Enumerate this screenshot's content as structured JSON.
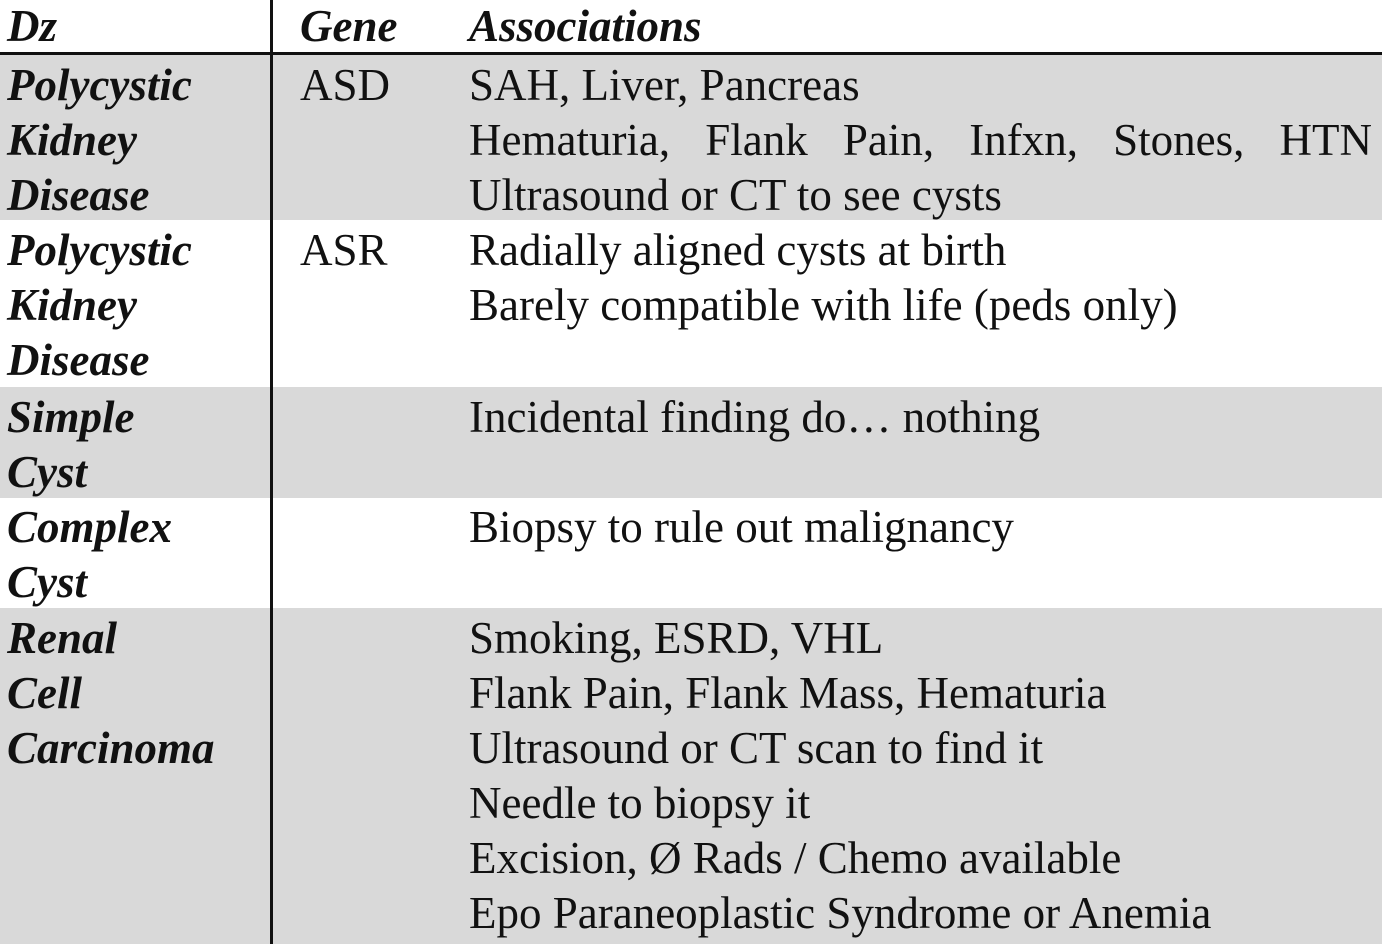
{
  "header": {
    "dz": "Dz",
    "gene": "Gene",
    "associations": "Associations"
  },
  "rows": [
    {
      "dz_lines": [
        "Polycystic",
        "Kidney",
        "Disease"
      ],
      "gene": "ASD",
      "associations": [
        "SAH, Liver, Pancreas",
        "Hematuria, Flank Pain, Infxn, Stones, HTN",
        "Ultrasound or CT to see cysts"
      ],
      "shaded": true
    },
    {
      "dz_lines": [
        "Polycystic",
        "Kidney",
        "Disease"
      ],
      "gene": "ASR",
      "associations": [
        "Radially aligned cysts at birth",
        "Barely compatible with life (peds only)"
      ],
      "shaded": false
    },
    {
      "dz_lines": [
        "Simple",
        "Cyst"
      ],
      "gene": "",
      "associations": [
        "Incidental finding do… nothing"
      ],
      "shaded": true
    },
    {
      "dz_lines": [
        "Complex",
        "Cyst"
      ],
      "gene": "",
      "associations": [
        "Biopsy to rule out malignancy"
      ],
      "shaded": false
    },
    {
      "dz_lines": [
        "Renal",
        "Cell",
        "Carcinoma"
      ],
      "gene": "",
      "associations": [
        "Smoking, ESRD, VHL",
        "Flank Pain, Flank Mass, Hematuria",
        "Ultrasound or CT scan to find it",
        "Needle to biopsy it",
        "Excision, Ø Rads / Chemo available",
        "Epo Paraneoplastic Syndrome or Anemia"
      ],
      "shaded": true
    }
  ],
  "colors": {
    "shaded_row": "#d9d9d9",
    "plain_row": "#ffffff",
    "rule": "#111111"
  }
}
